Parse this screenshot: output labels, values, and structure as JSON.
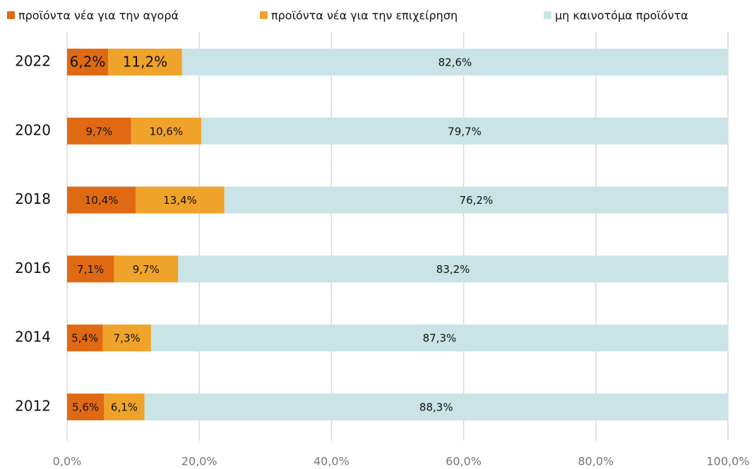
{
  "chart_data": {
    "type": "stacked_bar_horizontal",
    "categories": [
      "2022",
      "2020",
      "2018",
      "2016",
      "2014",
      "2012"
    ],
    "series": [
      {
        "name": "προϊόντα νέα για την αγορά",
        "color": "#e06a14",
        "values": [
          6.2,
          9.7,
          10.4,
          7.1,
          5.4,
          5.6
        ],
        "value_labels": [
          "6,2%",
          "9,7%",
          "10,4%",
          "7,1%",
          "5,4%",
          "5,6%"
        ]
      },
      {
        "name": "προϊόντα νέα για την επιχείρηση",
        "color": "#f0a32a",
        "values": [
          11.2,
          10.6,
          13.4,
          9.7,
          7.3,
          6.1
        ],
        "value_labels": [
          "11,2%",
          "10,6%",
          "13,4%",
          "9,7%",
          "7,3%",
          "6,1%"
        ]
      },
      {
        "name": "μη καινοτόμα προϊόντα",
        "color": "#c9e3e6",
        "values": [
          82.6,
          79.7,
          76.2,
          83.2,
          87.3,
          88.3
        ],
        "value_labels": [
          "82,6%",
          "79,7%",
          "76,2%",
          "83,2%",
          "87,3%",
          "88,3%"
        ]
      }
    ],
    "xlim": [
      0,
      100
    ],
    "xticks": [
      {
        "value": 0,
        "label": "0,0%"
      },
      {
        "value": 20,
        "label": "20,0%"
      },
      {
        "value": 40,
        "label": "40,0%"
      },
      {
        "value": 60,
        "label": "60,0%"
      },
      {
        "value": 80,
        "label": "80,0%"
      },
      {
        "value": 100,
        "label": "100,0%"
      }
    ],
    "grid": true,
    "legend": "top"
  }
}
